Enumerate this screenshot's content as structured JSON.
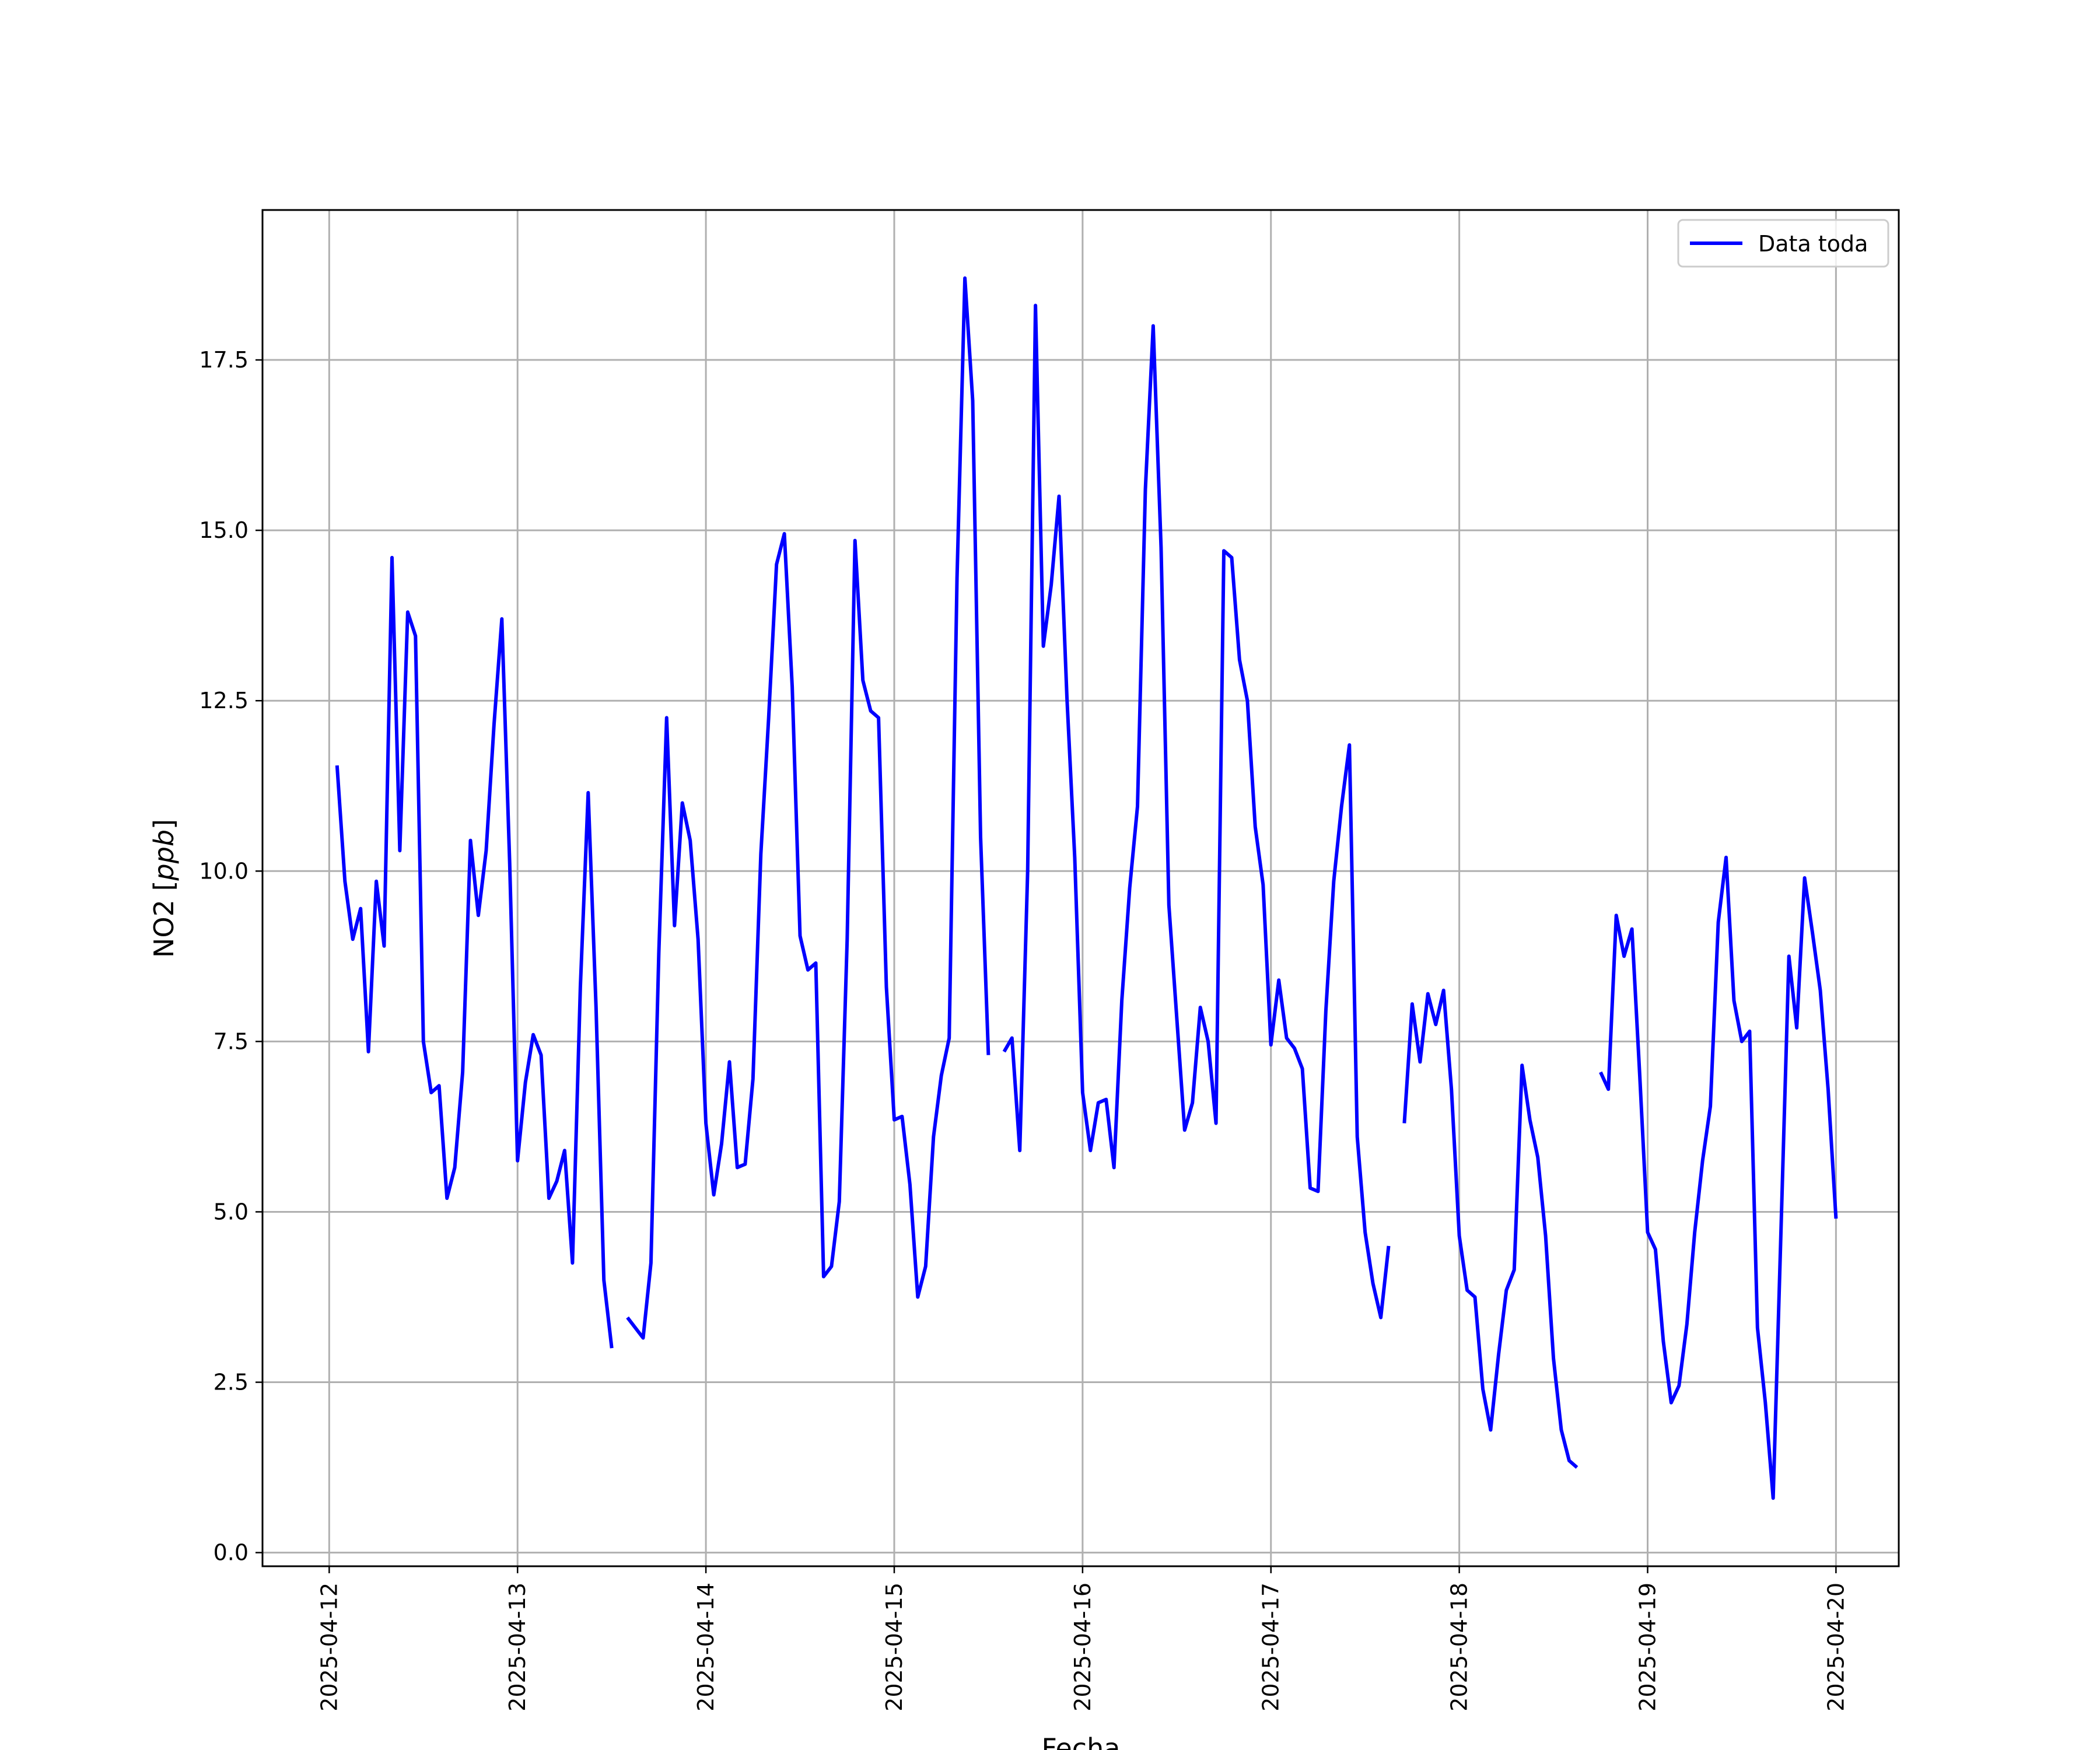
{
  "chart_data": {
    "type": "line",
    "title": "",
    "xlabel": "Fecha",
    "ylabel": "NO2 [ppb]",
    "ylabel_parts": {
      "prefix": "NO2 [",
      "unit": "ppb",
      "suffix": "]"
    },
    "xlim": [
      "2025-04-11T15:30",
      "2025-04-20T08:00"
    ],
    "ylim": [
      -0.2,
      19.7
    ],
    "grid": true,
    "legend_position": "upper right",
    "x_ticks": [
      "2025-04-12",
      "2025-04-13",
      "2025-04-14",
      "2025-04-15",
      "2025-04-16",
      "2025-04-17",
      "2025-04-18",
      "2025-04-19",
      "2025-04-20"
    ],
    "y_ticks": [
      "0.0",
      "2.5",
      "5.0",
      "7.5",
      "10.0",
      "12.5",
      "15.0",
      "17.5"
    ],
    "series": [
      {
        "name": "Data toda",
        "color": "#0000ff",
        "points": [
          [
            "2025-04-12T01:00",
            11.55
          ],
          [
            "2025-04-12T02:00",
            9.85
          ],
          [
            "2025-04-12T03:00",
            9.0
          ],
          [
            "2025-04-12T04:00",
            9.45
          ],
          [
            "2025-04-12T05:00",
            7.35
          ],
          [
            "2025-04-12T06:00",
            9.85
          ],
          [
            "2025-04-12T07:00",
            8.9
          ],
          [
            "2025-04-12T08:00",
            14.6
          ],
          [
            "2025-04-12T09:00",
            10.3
          ],
          [
            "2025-04-12T10:00",
            13.8
          ],
          [
            "2025-04-12T11:00",
            13.45
          ],
          [
            "2025-04-12T12:00",
            7.5
          ],
          [
            "2025-04-12T13:00",
            6.75
          ],
          [
            "2025-04-12T14:00",
            6.85
          ],
          [
            "2025-04-12T15:00",
            5.2
          ],
          [
            "2025-04-12T16:00",
            5.65
          ],
          [
            "2025-04-12T17:00",
            7.05
          ],
          [
            "2025-04-12T18:00",
            10.45
          ],
          [
            "2025-04-12T19:00",
            9.35
          ],
          [
            "2025-04-12T20:00",
            10.3
          ],
          [
            "2025-04-12T21:00",
            12.15
          ],
          [
            "2025-04-12T22:00",
            13.7
          ],
          [
            "2025-04-12T23:00",
            10.1
          ],
          [
            "2025-04-13T00:00",
            5.75
          ],
          [
            "2025-04-13T01:00",
            6.9
          ],
          [
            "2025-04-13T02:00",
            7.6
          ],
          [
            "2025-04-13T03:00",
            7.3
          ],
          [
            "2025-04-13T04:00",
            5.2
          ],
          [
            "2025-04-13T05:00",
            5.45
          ],
          [
            "2025-04-13T06:00",
            5.9
          ],
          [
            "2025-04-13T07:00",
            4.25
          ],
          [
            "2025-04-13T08:00",
            8.3
          ],
          [
            "2025-04-13T09:00",
            11.15
          ],
          [
            "2025-04-13T10:00",
            8.0
          ],
          [
            "2025-04-13T11:00",
            4.0
          ],
          [
            "2025-04-13T12:00",
            3.0
          ],
          null,
          [
            "2025-04-13T14:00",
            3.45
          ],
          [
            "2025-04-13T15:00",
            3.3
          ],
          [
            "2025-04-13T16:00",
            3.15
          ],
          [
            "2025-04-13T17:00",
            4.25
          ],
          [
            "2025-04-13T18:00",
            8.8
          ],
          [
            "2025-04-13T19:00",
            12.25
          ],
          [
            "2025-04-13T20:00",
            9.2
          ],
          [
            "2025-04-13T21:00",
            11.0
          ],
          [
            "2025-04-13T22:00",
            10.45
          ],
          [
            "2025-04-13T23:00",
            9.0
          ],
          [
            "2025-04-14T00:00",
            6.3
          ],
          [
            "2025-04-14T01:00",
            5.25
          ],
          [
            "2025-04-14T02:00",
            6.0
          ],
          [
            "2025-04-14T03:00",
            7.2
          ],
          [
            "2025-04-14T04:00",
            5.65
          ],
          [
            "2025-04-14T05:00",
            5.7
          ],
          [
            "2025-04-14T06:00",
            6.95
          ],
          [
            "2025-04-14T07:00",
            10.25
          ],
          [
            "2025-04-14T08:00",
            12.25
          ],
          [
            "2025-04-14T09:00",
            14.5
          ],
          [
            "2025-04-14T10:00",
            14.95
          ],
          [
            "2025-04-14T11:00",
            12.7
          ],
          [
            "2025-04-14T12:00",
            9.05
          ],
          [
            "2025-04-14T13:00",
            8.55
          ],
          [
            "2025-04-14T14:00",
            8.65
          ],
          [
            "2025-04-14T15:00",
            4.05
          ],
          [
            "2025-04-14T16:00",
            4.2
          ],
          [
            "2025-04-14T17:00",
            5.15
          ],
          [
            "2025-04-14T18:00",
            9.0
          ],
          [
            "2025-04-14T19:00",
            14.85
          ],
          [
            "2025-04-14T20:00",
            12.8
          ],
          [
            "2025-04-14T21:00",
            12.35
          ],
          [
            "2025-04-14T22:00",
            12.25
          ],
          [
            "2025-04-14T23:00",
            8.3
          ],
          [
            "2025-04-15T00:00",
            6.35
          ],
          [
            "2025-04-15T01:00",
            6.4
          ],
          [
            "2025-04-15T02:00",
            5.4
          ],
          [
            "2025-04-15T03:00",
            3.75
          ],
          [
            "2025-04-15T04:00",
            4.2
          ],
          [
            "2025-04-15T05:00",
            6.1
          ],
          [
            "2025-04-15T06:00",
            7.0
          ],
          [
            "2025-04-15T07:00",
            7.55
          ],
          [
            "2025-04-15T08:00",
            14.3
          ],
          [
            "2025-04-15T09:00",
            18.7
          ],
          [
            "2025-04-15T10:00",
            16.9
          ],
          [
            "2025-04-15T11:00",
            10.5
          ],
          [
            "2025-04-15T12:00",
            7.3
          ],
          null,
          [
            "2025-04-15T14:00",
            7.35
          ],
          [
            "2025-04-15T15:00",
            7.55
          ],
          [
            "2025-04-15T16:00",
            5.9
          ],
          [
            "2025-04-15T17:00",
            10.0
          ],
          [
            "2025-04-15T18:00",
            18.3
          ],
          [
            "2025-04-15T19:00",
            13.3
          ],
          [
            "2025-04-15T20:00",
            14.2
          ],
          [
            "2025-04-15T21:00",
            15.5
          ],
          [
            "2025-04-15T22:00",
            12.55
          ],
          [
            "2025-04-15T23:00",
            10.2
          ],
          [
            "2025-04-16T00:00",
            6.75
          ],
          [
            "2025-04-16T01:00",
            5.9
          ],
          [
            "2025-04-16T02:00",
            6.6
          ],
          [
            "2025-04-16T03:00",
            6.65
          ],
          [
            "2025-04-16T04:00",
            5.65
          ],
          [
            "2025-04-16T05:00",
            8.1
          ],
          [
            "2025-04-16T06:00",
            9.75
          ],
          [
            "2025-04-16T07:00",
            10.95
          ],
          [
            "2025-04-16T08:00",
            15.6
          ],
          [
            "2025-04-16T09:00",
            18.0
          ],
          [
            "2025-04-16T10:00",
            14.75
          ],
          [
            "2025-04-16T11:00",
            9.5
          ],
          [
            "2025-04-16T12:00",
            7.85
          ],
          [
            "2025-04-16T13:00",
            6.2
          ],
          [
            "2025-04-16T14:00",
            6.6
          ],
          [
            "2025-04-16T15:00",
            8.0
          ],
          [
            "2025-04-16T16:00",
            7.5
          ],
          [
            "2025-04-16T17:00",
            6.3
          ],
          [
            "2025-04-16T18:00",
            14.7
          ],
          [
            "2025-04-16T19:00",
            14.6
          ],
          [
            "2025-04-16T20:00",
            13.1
          ],
          [
            "2025-04-16T21:00",
            12.5
          ],
          [
            "2025-04-16T22:00",
            10.65
          ],
          [
            "2025-04-16T23:00",
            9.8
          ],
          [
            "2025-04-17T00:00",
            7.45
          ],
          [
            "2025-04-17T01:00",
            8.4
          ],
          [
            "2025-04-17T02:00",
            7.55
          ],
          [
            "2025-04-17T03:00",
            7.4
          ],
          [
            "2025-04-17T04:00",
            7.1
          ],
          [
            "2025-04-17T05:00",
            5.35
          ],
          [
            "2025-04-17T06:00",
            5.3
          ],
          [
            "2025-04-17T07:00",
            7.95
          ],
          [
            "2025-04-17T08:00",
            9.85
          ],
          [
            "2025-04-17T09:00",
            10.95
          ],
          [
            "2025-04-17T10:00",
            11.85
          ],
          [
            "2025-04-17T11:00",
            6.1
          ],
          [
            "2025-04-17T12:00",
            4.7
          ],
          [
            "2025-04-17T13:00",
            3.95
          ],
          [
            "2025-04-17T14:00",
            3.45
          ],
          [
            "2025-04-17T15:00",
            4.5
          ],
          null,
          [
            "2025-04-17T17:00",
            6.3
          ],
          [
            "2025-04-17T18:00",
            8.05
          ],
          [
            "2025-04-17T19:00",
            7.2
          ],
          [
            "2025-04-17T20:00",
            8.2
          ],
          [
            "2025-04-17T21:00",
            7.75
          ],
          [
            "2025-04-17T22:00",
            8.25
          ],
          [
            "2025-04-17T23:00",
            6.8
          ],
          [
            "2025-04-18T00:00",
            4.65
          ],
          [
            "2025-04-18T01:00",
            3.85
          ],
          [
            "2025-04-18T02:00",
            3.75
          ],
          [
            "2025-04-18T03:00",
            2.4
          ],
          [
            "2025-04-18T04:00",
            1.8
          ],
          [
            "2025-04-18T05:00",
            2.9
          ],
          [
            "2025-04-18T06:00",
            3.85
          ],
          [
            "2025-04-18T07:00",
            4.15
          ],
          [
            "2025-04-18T08:00",
            7.15
          ],
          [
            "2025-04-18T09:00",
            6.35
          ],
          [
            "2025-04-18T10:00",
            5.8
          ],
          [
            "2025-04-18T11:00",
            4.65
          ],
          [
            "2025-04-18T12:00",
            2.85
          ],
          [
            "2025-04-18T13:00",
            1.8
          ],
          [
            "2025-04-18T14:00",
            1.35
          ],
          [
            "2025-04-18T15:00",
            1.25
          ],
          null,
          [
            "2025-04-18T18:00",
            7.05
          ],
          [
            "2025-04-18T19:00",
            6.8
          ],
          [
            "2025-04-18T20:00",
            9.35
          ],
          [
            "2025-04-18T21:00",
            8.75
          ],
          [
            "2025-04-18T22:00",
            9.15
          ],
          [
            "2025-04-18T23:00",
            7.0
          ],
          [
            "2025-04-19T00:00",
            4.7
          ],
          [
            "2025-04-19T01:00",
            4.45
          ],
          [
            "2025-04-19T02:00",
            3.1
          ],
          [
            "2025-04-19T03:00",
            2.2
          ],
          [
            "2025-04-19T04:00",
            2.45
          ],
          [
            "2025-04-19T05:00",
            3.35
          ],
          [
            "2025-04-19T06:00",
            4.7
          ],
          [
            "2025-04-19T07:00",
            5.75
          ],
          [
            "2025-04-19T08:00",
            6.55
          ],
          [
            "2025-04-19T09:00",
            9.25
          ],
          [
            "2025-04-19T10:00",
            10.2
          ],
          [
            "2025-04-19T11:00",
            8.1
          ],
          [
            "2025-04-19T12:00",
            7.5
          ],
          [
            "2025-04-19T13:00",
            7.65
          ],
          [
            "2025-04-19T14:00",
            3.3
          ],
          [
            "2025-04-19T15:00",
            2.2
          ],
          [
            "2025-04-19T16:00",
            0.8
          ],
          [
            "2025-04-19T17:00",
            4.75
          ],
          [
            "2025-04-19T18:00",
            8.75
          ],
          [
            "2025-04-19T19:00",
            7.7
          ],
          [
            "2025-04-19T20:00",
            9.9
          ],
          [
            "2025-04-19T21:00",
            9.1
          ],
          [
            "2025-04-19T22:00",
            8.25
          ],
          [
            "2025-04-19T23:00",
            6.8
          ],
          [
            "2025-04-20T00:00",
            4.9
          ]
        ]
      }
    ]
  }
}
